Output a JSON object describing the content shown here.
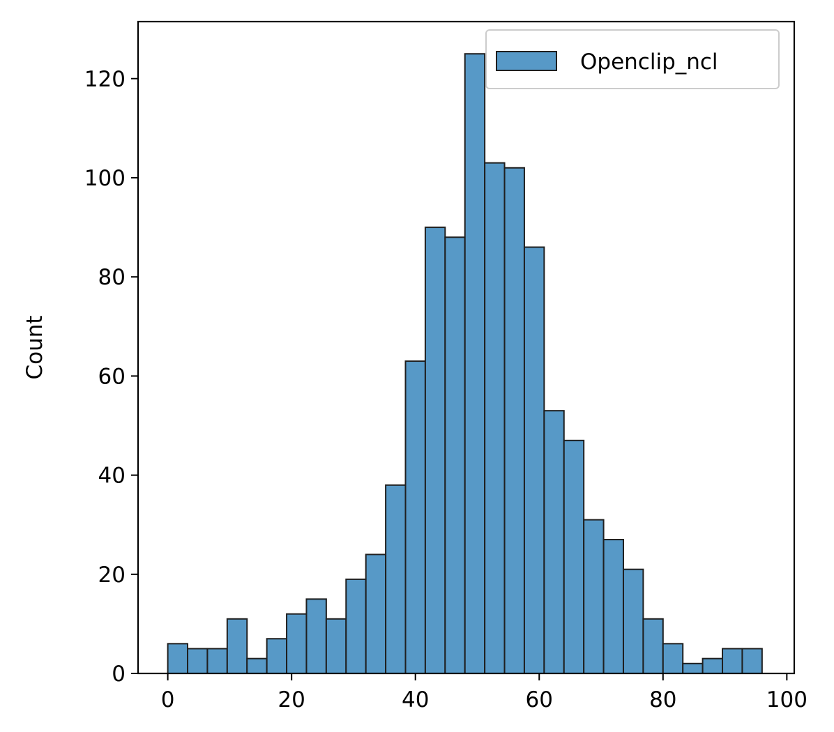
{
  "chart_data": {
    "type": "bar",
    "title": "",
    "xlabel": "",
    "ylabel": "Count",
    "xlim": [
      -4.8,
      101.2
    ],
    "ylim": [
      0,
      131.5
    ],
    "xticks": [
      0,
      20,
      40,
      60,
      80,
      100
    ],
    "yticks": [
      0,
      20,
      40,
      60,
      80,
      100,
      120
    ],
    "bin_start": 0,
    "bin_width": 3.2,
    "series": [
      {
        "name": "Openclip_ncl",
        "color": "#5799c7",
        "edgecolor": "#1f1f1f",
        "values": [
          6,
          5,
          5,
          11,
          3,
          7,
          12,
          15,
          11,
          19,
          24,
          38,
          63,
          90,
          88,
          125,
          103,
          102,
          86,
          53,
          47,
          31,
          27,
          21,
          11,
          6,
          2,
          3,
          5,
          5
        ]
      }
    ],
    "legend": {
      "position": "top-right",
      "frame": true
    },
    "grid": false
  }
}
